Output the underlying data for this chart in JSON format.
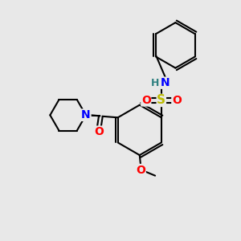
{
  "background_color": "#e8e8e8",
  "bond_color": "#000000",
  "atom_colors": {
    "N": "#0000ff",
    "H": "#2f8080",
    "S": "#bbbb00",
    "O": "#ff0000",
    "C": "#000000"
  },
  "figsize": [
    3.0,
    3.0
  ],
  "dpi": 100,
  "lw": 1.5
}
